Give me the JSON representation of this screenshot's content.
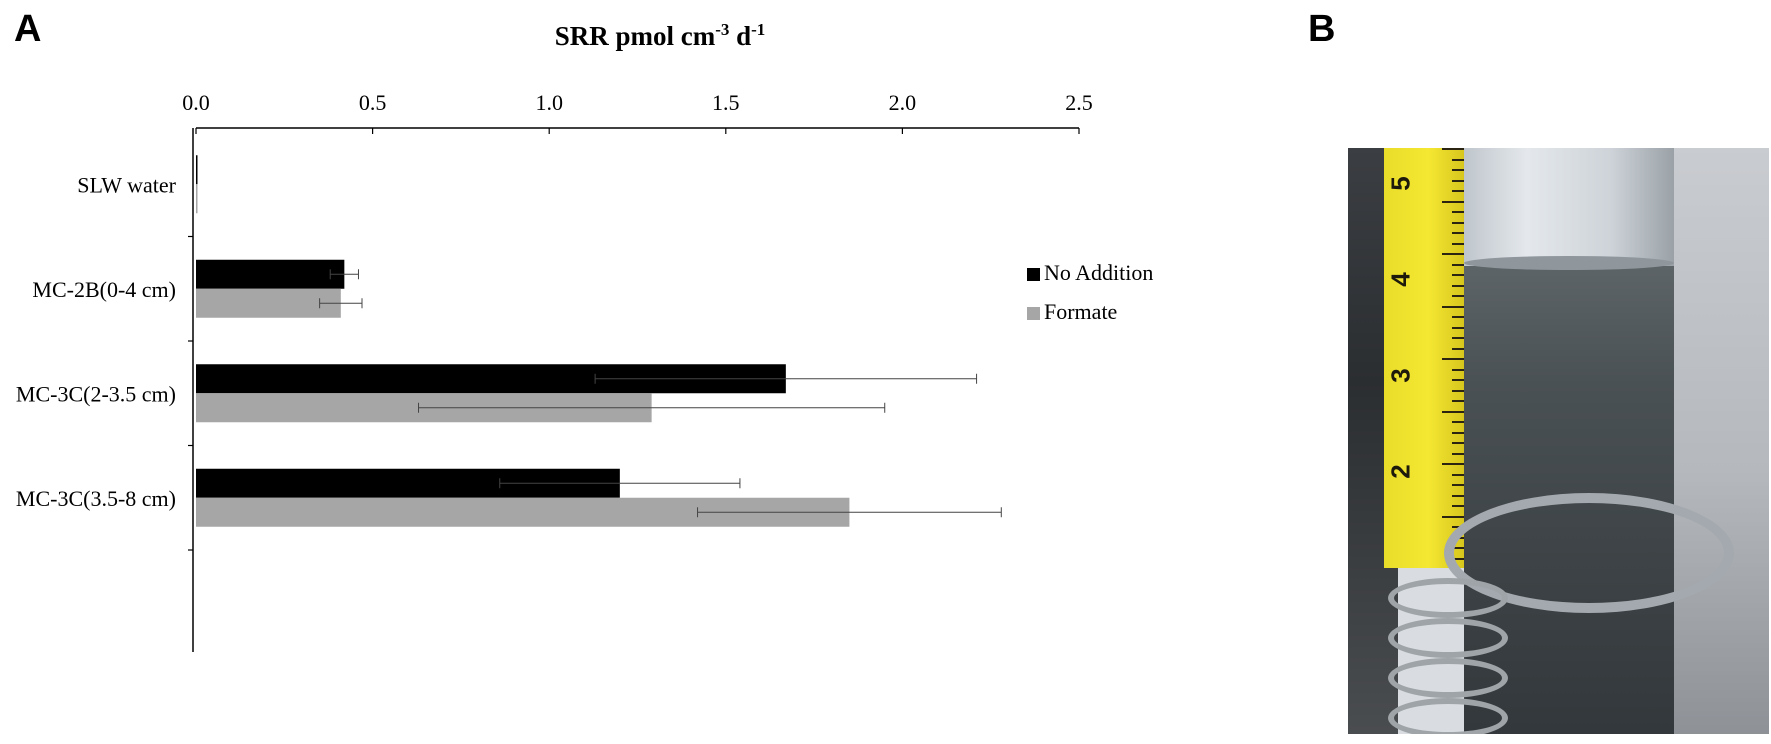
{
  "panels": {
    "a_label": "A",
    "b_label": "B"
  },
  "chart_data": {
    "type": "bar",
    "orientation": "horizontal",
    "title": "SRR pmol cm-3 d-1",
    "title_parts": {
      "base": "SRR pmol cm",
      "sup1": "-3",
      "mid": " d",
      "sup2": "-1"
    },
    "xlim": [
      0,
      2.5
    ],
    "ticks": [
      "0.0",
      "0.5",
      "1.0",
      "1.5",
      "2.0",
      "2.5"
    ],
    "tick_values": [
      0,
      0.5,
      1.0,
      1.5,
      2.0,
      2.5
    ],
    "categories": [
      "SLW water",
      "MC-2B(0-4 cm)",
      "MC-3C(2-3.5 cm)",
      "MC-3C(3.5-8 cm)"
    ],
    "series": [
      {
        "name": "No Addition",
        "color": "#000000",
        "values": [
          0.0,
          0.42,
          1.67,
          1.2
        ],
        "errors": [
          0.0,
          0.04,
          0.54,
          0.34
        ]
      },
      {
        "name": "Formate",
        "color": "#a6a6a6",
        "values": [
          0.0,
          0.41,
          1.29,
          1.85
        ],
        "errors": [
          0.0,
          0.06,
          0.66,
          0.43
        ]
      }
    ],
    "legend_position": "right",
    "grid": false
  },
  "photo": {
    "tape_numbers": [
      "5",
      "4",
      "3",
      "2"
    ]
  }
}
